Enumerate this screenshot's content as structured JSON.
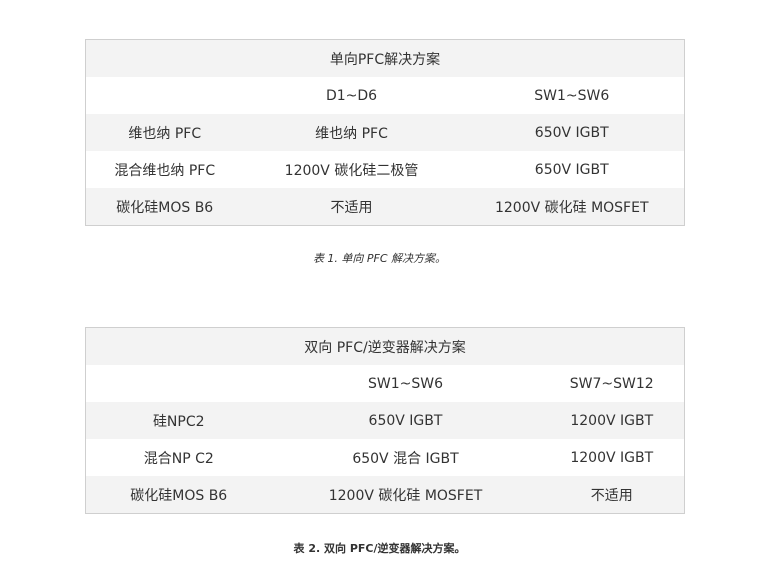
{
  "table1": {
    "title": "单向PFC解决方案",
    "header": [
      "",
      "D1~D6",
      "SW1~SW6"
    ],
    "rows": [
      [
        "维也纳 PFC",
        "维也纳 PFC",
        "650V IGBT"
      ],
      [
        "混合维也纳 PFC",
        "1200V 碳化硅二极管",
        "650V IGBT"
      ],
      [
        "碳化硅MOS B6",
        "不适用",
        "1200V 碳化硅 MOSFET"
      ]
    ],
    "caption": "表 1. 单向 PFC 解决方案。"
  },
  "table2": {
    "title": "双向 PFC/逆变器解决方案",
    "header": [
      "",
      "SW1~SW6",
      "SW7~SW12"
    ],
    "rows": [
      [
        "硅NPC2",
        "650V IGBT",
        "1200V IGBT"
      ],
      [
        "混合NP C2",
        "650V 混合 IGBT",
        "1200V IGBT"
      ],
      [
        "碳化硅MOS B6",
        "1200V 碳化硅 MOSFET",
        "不适用"
      ]
    ],
    "caption": "表 2. 双向 PFC/逆变器解决方案。"
  }
}
